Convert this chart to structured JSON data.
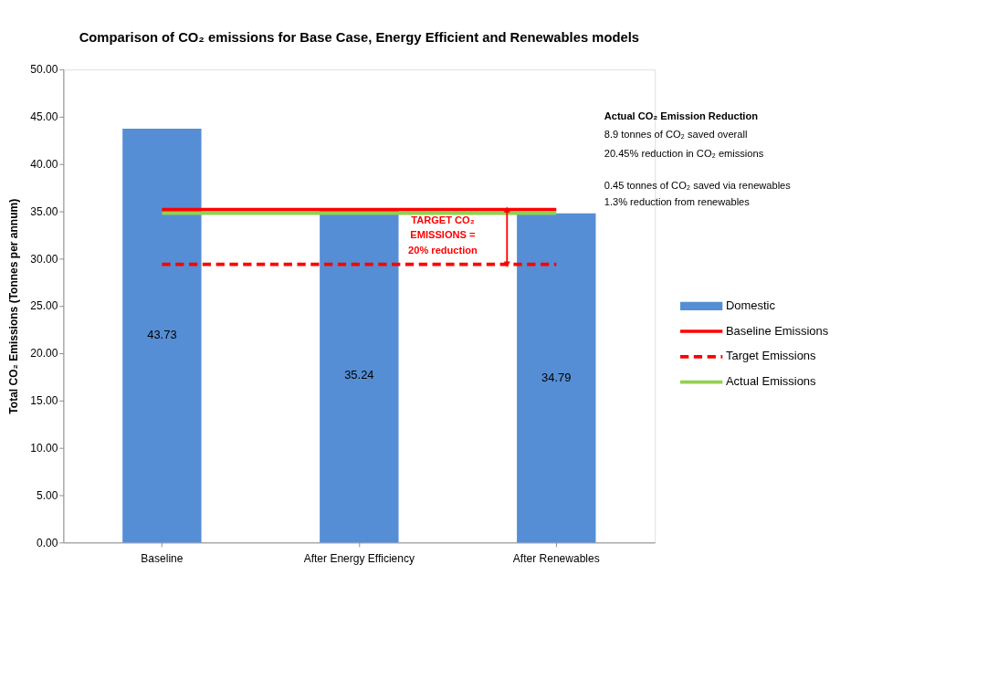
{
  "chart_data": {
    "type": "bar",
    "title": "Comparison of CO₂ emissions for Base Case, Energy Efficient and Renewables models",
    "ylabel": "Total CO₂ Emissions (Tonnes per  annum)",
    "categories": [
      "Baseline",
      "After Energy Efficiency",
      "After Renewables"
    ],
    "series": [
      {
        "name": "Domestic",
        "color": "#558ed5",
        "values": [
          43.73,
          35.24,
          34.79
        ],
        "value_labels": [
          "43.73",
          "35.24",
          "34.79"
        ]
      },
      {
        "name": "Baseline Emissions",
        "type": "line",
        "color": "#ff0000",
        "line_style": "solid",
        "values": [
          35.2,
          35.2,
          35.2
        ]
      },
      {
        "name": "Target Emissions",
        "type": "line",
        "color": "#ff0000",
        "line_style": "dashed",
        "values": [
          29.4,
          29.4,
          29.4
        ]
      },
      {
        "name": "Actual Emissions",
        "type": "line",
        "color": "#92d050",
        "line_style": "solid",
        "values": [
          34.8,
          34.8,
          34.8
        ]
      }
    ],
    "ylim": [
      0,
      50
    ],
    "yticks": [
      {
        "value": 0,
        "label": "0.00"
      },
      {
        "value": 5,
        "label": "5.00"
      },
      {
        "value": 10,
        "label": "10.00"
      },
      {
        "value": 15,
        "label": "15.00"
      },
      {
        "value": 20,
        "label": "20.00"
      },
      {
        "value": 25,
        "label": "25.00"
      },
      {
        "value": 30,
        "label": "30.00"
      },
      {
        "value": 35,
        "label": "35.00"
      },
      {
        "value": 40,
        "label": "40.00"
      },
      {
        "value": 45,
        "label": "45.00"
      },
      {
        "value": 50,
        "label": "50.00"
      }
    ],
    "grid": false,
    "legend": "right",
    "marker": "none",
    "annotations": [
      "Actual CO₂ Emission Reduction",
      "8.9 tonnes of CO₂ saved overall",
      "20.45% reduction in CO₂ emissions",
      "0.45 tonnes of CO₂ saved via renewables",
      "1.3% reduction from renewables",
      "TARGET CO₂ EMISSIONS = 20% reduction"
    ]
  }
}
